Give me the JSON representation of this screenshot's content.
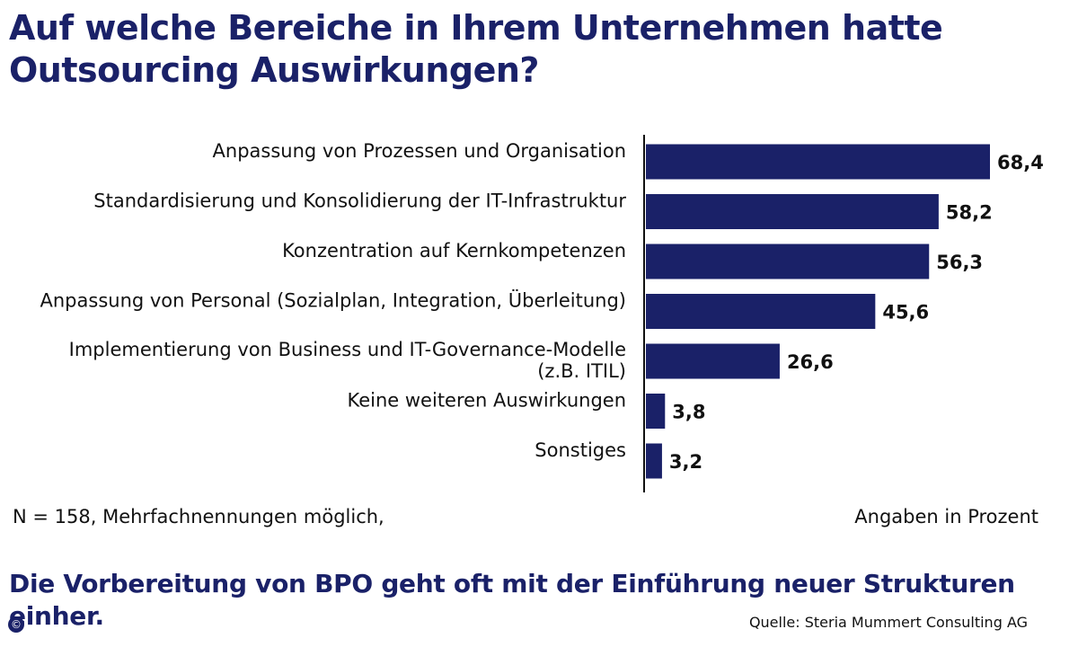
{
  "chart_data": {
    "type": "bar",
    "orientation": "horizontal",
    "title": "Auf welche Bereiche in Ihrem Unternehmen hatte Outsourcing Auswirkungen?",
    "categories": [
      [
        "Anpassung von Prozessen und Organisation"
      ],
      [
        "Standardisierung und Konsolidierung der IT-Infrastruktur"
      ],
      [
        "Konzentration auf Kernkompetenzen"
      ],
      [
        "Anpassung von Personal (Sozialplan, Integration, Überleitung)"
      ],
      [
        "Implementierung von Business und IT-Governance-Modelle",
        "(z.B. ITIL)"
      ],
      [
        "Keine weiteren Auswirkungen"
      ],
      [
        "Sonstiges"
      ]
    ],
    "values": [
      68.4,
      58.2,
      56.3,
      45.6,
      26.6,
      3.8,
      3.2
    ],
    "value_labels": [
      "68,4",
      "58,2",
      "56,3",
      "45,6",
      "26,6",
      "3,8",
      "3,2"
    ],
    "xlim": [
      0,
      68.4
    ],
    "bar_color": "#1a2168",
    "grid": false,
    "legend": "none"
  },
  "footnote_left": "N = 158, Mehrfachnennungen möglich,",
  "footnote_right": "Angaben in Prozent",
  "headline": "Die Vorbereitung von BPO geht oft mit der Einführung neuer Strukturen einher.",
  "source": "Quelle: Steria Mummert Consulting AG",
  "copyright_symbol": "©",
  "colors": {
    "title": "#1a2168",
    "bar": "#1a2168",
    "text": "#111111"
  }
}
